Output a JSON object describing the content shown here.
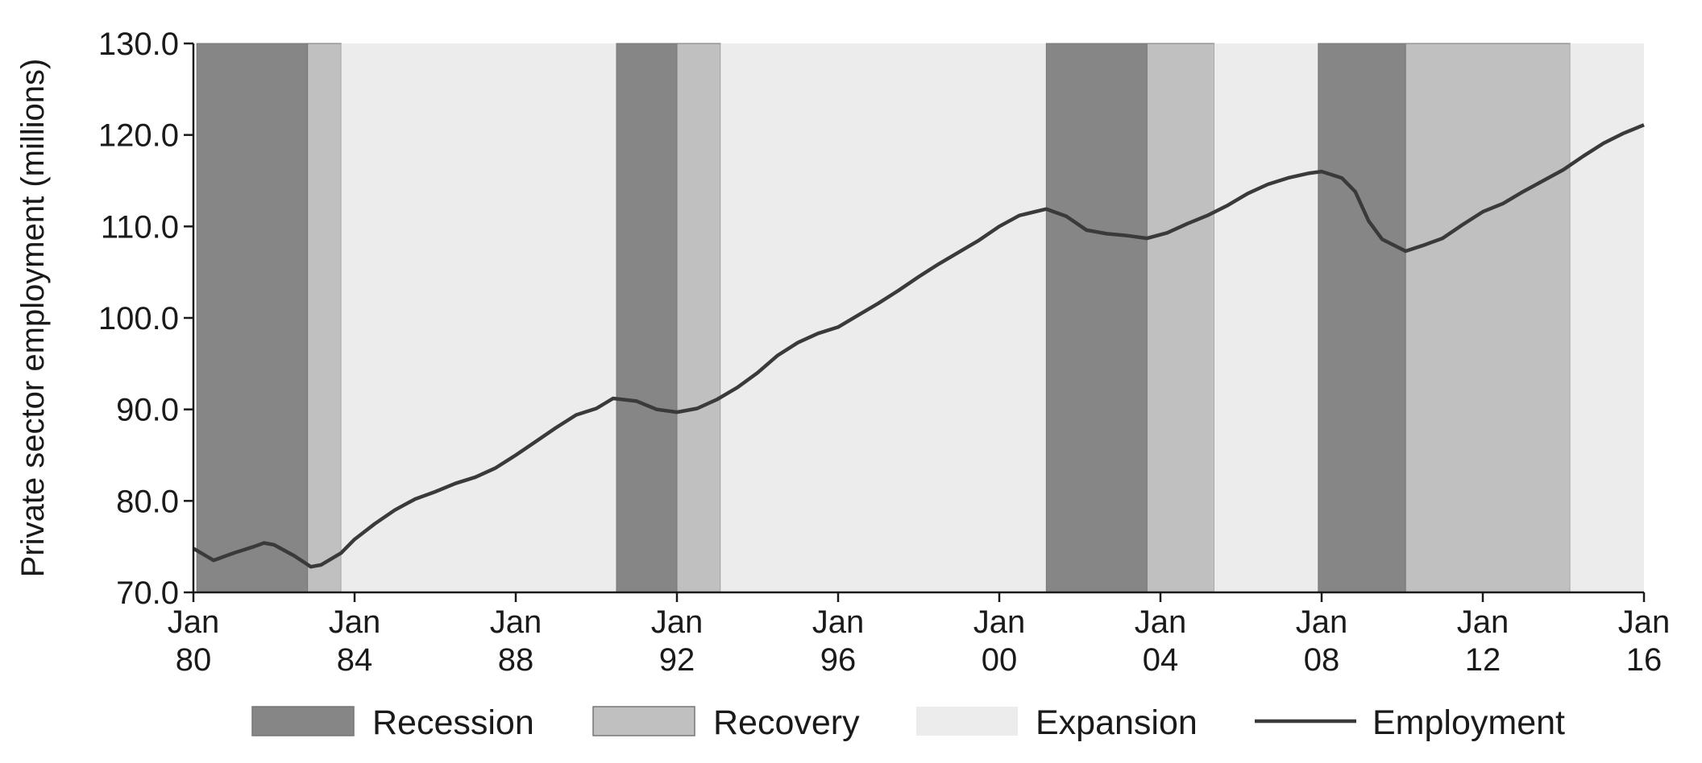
{
  "chart_data": {
    "type": "line",
    "title": "",
    "ylabel": "Private sector employment (millions)",
    "xlabel": "",
    "ylim": [
      70,
      130
    ],
    "xlim": [
      "1980-01",
      "2016-01"
    ],
    "grid": false,
    "legend_position": "bottom",
    "y_ticks": [
      70.0,
      80.0,
      90.0,
      100.0,
      110.0,
      120.0,
      130.0
    ],
    "y_tick_labels": [
      "70.0",
      "80.0",
      "90.0",
      "100.0",
      "110.0",
      "120.0",
      "130.0"
    ],
    "x_ticks": [
      {
        "date": "1980-01",
        "line1": "Jan",
        "line2": "80"
      },
      {
        "date": "1984-01",
        "line1": "Jan",
        "line2": "84"
      },
      {
        "date": "1988-01",
        "line1": "Jan",
        "line2": "88"
      },
      {
        "date": "1992-01",
        "line1": "Jan",
        "line2": "92"
      },
      {
        "date": "1996-01",
        "line1": "Jan",
        "line2": "96"
      },
      {
        "date": "2000-01",
        "line1": "Jan",
        "line2": "00"
      },
      {
        "date": "2004-01",
        "line1": "Jan",
        "line2": "04"
      },
      {
        "date": "2008-01",
        "line1": "Jan",
        "line2": "08"
      },
      {
        "date": "2012-01",
        "line1": "Jan",
        "line2": "12"
      },
      {
        "date": "2016-01",
        "line1": "Jan",
        "line2": "16"
      }
    ],
    "phases": [
      {
        "type": "Recession",
        "start": "1980-02",
        "end": "1982-11"
      },
      {
        "type": "Recovery",
        "start": "1982-11",
        "end": "1983-09"
      },
      {
        "type": "Expansion",
        "start": "1983-09",
        "end": "1990-07"
      },
      {
        "type": "Recession",
        "start": "1990-07",
        "end": "1992-01"
      },
      {
        "type": "Recovery",
        "start": "1992-01",
        "end": "1993-02"
      },
      {
        "type": "Expansion",
        "start": "1993-02",
        "end": "2001-03"
      },
      {
        "type": "Recession",
        "start": "2001-03",
        "end": "2003-09"
      },
      {
        "type": "Recovery",
        "start": "2003-09",
        "end": "2005-05"
      },
      {
        "type": "Expansion",
        "start": "2005-05",
        "end": "2007-12"
      },
      {
        "type": "Recession",
        "start": "2007-12",
        "end": "2010-02"
      },
      {
        "type": "Recovery",
        "start": "2010-02",
        "end": "2014-03"
      },
      {
        "type": "Expansion",
        "start": "2014-03",
        "end": "2016-01"
      }
    ],
    "series": [
      {
        "name": "Employment",
        "points": [
          [
            "1980-01",
            74.8
          ],
          [
            "1980-07",
            73.5
          ],
          [
            "1981-01",
            74.3
          ],
          [
            "1981-07",
            75.0
          ],
          [
            "1981-10",
            75.4
          ],
          [
            "1982-01",
            75.2
          ],
          [
            "1982-07",
            74.0
          ],
          [
            "1982-12",
            72.8
          ],
          [
            "1983-03",
            73.0
          ],
          [
            "1983-09",
            74.3
          ],
          [
            "1984-01",
            75.8
          ],
          [
            "1984-07",
            77.5
          ],
          [
            "1985-01",
            79.0
          ],
          [
            "1985-07",
            80.2
          ],
          [
            "1986-01",
            81.0
          ],
          [
            "1986-07",
            81.9
          ],
          [
            "1987-01",
            82.6
          ],
          [
            "1987-07",
            83.6
          ],
          [
            "1988-01",
            85.0
          ],
          [
            "1988-07",
            86.5
          ],
          [
            "1989-01",
            88.0
          ],
          [
            "1989-07",
            89.4
          ],
          [
            "1990-01",
            90.1
          ],
          [
            "1990-06",
            91.2
          ],
          [
            "1991-01",
            90.9
          ],
          [
            "1991-07",
            90.0
          ],
          [
            "1992-01",
            89.7
          ],
          [
            "1992-07",
            90.1
          ],
          [
            "1993-01",
            91.1
          ],
          [
            "1993-07",
            92.4
          ],
          [
            "1994-01",
            94.0
          ],
          [
            "1994-07",
            95.9
          ],
          [
            "1995-01",
            97.3
          ],
          [
            "1995-07",
            98.3
          ],
          [
            "1996-01",
            99.0
          ],
          [
            "1996-07",
            100.3
          ],
          [
            "1997-01",
            101.6
          ],
          [
            "1997-07",
            103.0
          ],
          [
            "1998-01",
            104.5
          ],
          [
            "1998-07",
            105.9
          ],
          [
            "1999-01",
            107.2
          ],
          [
            "1999-07",
            108.5
          ],
          [
            "2000-01",
            110.0
          ],
          [
            "2000-07",
            111.2
          ],
          [
            "2001-03",
            111.9
          ],
          [
            "2001-09",
            111.1
          ],
          [
            "2002-03",
            109.6
          ],
          [
            "2002-09",
            109.2
          ],
          [
            "2003-03",
            109.0
          ],
          [
            "2003-09",
            108.7
          ],
          [
            "2004-03",
            109.3
          ],
          [
            "2004-09",
            110.3
          ],
          [
            "2005-03",
            111.2
          ],
          [
            "2005-09",
            112.3
          ],
          [
            "2006-03",
            113.6
          ],
          [
            "2006-09",
            114.6
          ],
          [
            "2007-03",
            115.3
          ],
          [
            "2007-09",
            115.8
          ],
          [
            "2008-01",
            116.0
          ],
          [
            "2008-07",
            115.3
          ],
          [
            "2008-11",
            113.8
          ],
          [
            "2009-03",
            110.6
          ],
          [
            "2009-07",
            108.6
          ],
          [
            "2010-02",
            107.3
          ],
          [
            "2010-07",
            107.9
          ],
          [
            "2011-01",
            108.7
          ],
          [
            "2011-07",
            110.2
          ],
          [
            "2012-01",
            111.6
          ],
          [
            "2012-07",
            112.5
          ],
          [
            "2013-01",
            113.8
          ],
          [
            "2013-07",
            115.0
          ],
          [
            "2014-01",
            116.2
          ],
          [
            "2014-07",
            117.7
          ],
          [
            "2015-01",
            119.1
          ],
          [
            "2015-07",
            120.2
          ],
          [
            "2016-01",
            121.1
          ]
        ]
      }
    ],
    "legend": [
      {
        "key": "Recession",
        "label": "Recession",
        "kind": "patch"
      },
      {
        "key": "Recovery",
        "label": "Recovery",
        "kind": "patch"
      },
      {
        "key": "Expansion",
        "label": "Expansion",
        "kind": "patch"
      },
      {
        "key": "Employment",
        "label": "Employment",
        "kind": "line"
      }
    ],
    "colors": {
      "Recession": "#868686",
      "Recovery": "#c0c0c0",
      "Expansion": "#ececec",
      "Employment": "#3a3a3a",
      "axis": "#1a1a1a"
    }
  }
}
